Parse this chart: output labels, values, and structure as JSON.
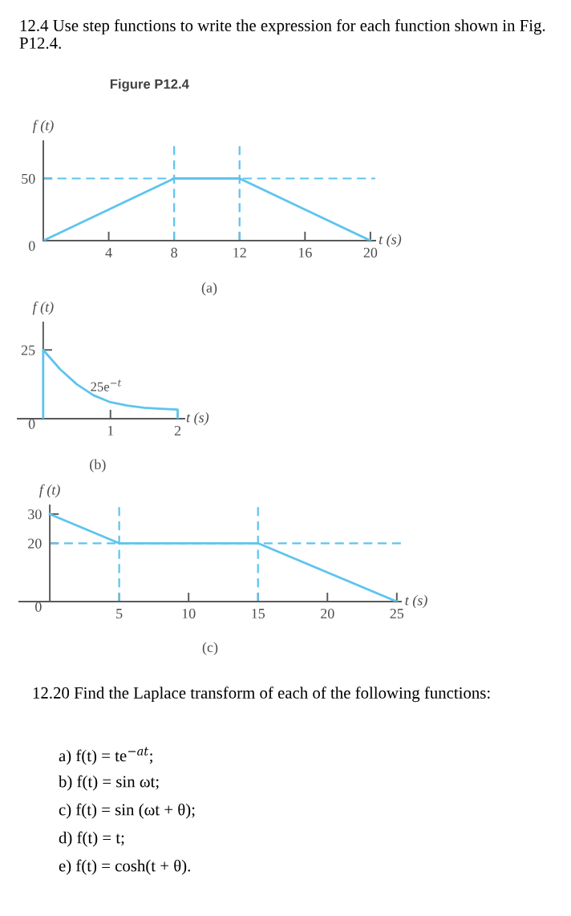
{
  "chart_data": [
    {
      "type": "line",
      "title": "12.4 Use step functions to write the expression for each function shown in Fig. P12.4.",
      "subtitle": "Figure P12.4",
      "xlabel": "t (s)",
      "ylabel": "f (t)",
      "x": [
        0,
        8,
        12,
        20
      ],
      "series": [
        {
          "color": "#5ec4ee",
          "values": [
            0,
            50,
            50,
            0
          ]
        }
      ],
      "xlim": [
        0,
        20.3
      ],
      "ylim": [
        0,
        80
      ],
      "xticks": [
        4,
        8,
        12,
        16,
        20
      ],
      "yticks": [
        0,
        50
      ],
      "ref_lines": [
        {
          "axis": "y",
          "value": 50,
          "color": "#5ec4ee",
          "line_style": "dashed"
        },
        {
          "axis": "x",
          "value": 8,
          "color": "#5ec4ee",
          "line_style": "dashed"
        },
        {
          "axis": "x",
          "value": 12,
          "color": "#5ec4ee",
          "line_style": "dashed"
        }
      ],
      "annotations": [
        "(a)"
      ],
      "grid": false,
      "marker": "none",
      "line_style": "solid"
    },
    {
      "type": "line",
      "xlabel": "t (s)",
      "ylabel": "f (t)",
      "x": [
        0,
        0,
        0.25,
        0.5,
        0.75,
        1,
        1.25,
        1.5,
        1.75,
        2,
        2
      ],
      "series": [
        {
          "color": "#5ec4ee",
          "values": [
            0,
            25,
            18,
            12.5,
            8.5,
            6,
            4.8,
            4,
            3.6,
            3.3,
            0
          ]
        }
      ],
      "xlim": [
        -0.38,
        2.1
      ],
      "ylim": [
        0,
        35
      ],
      "xticks": [
        1,
        2
      ],
      "yticks": [
        0,
        25
      ],
      "annotations": [
        {
          "text": "25e$^{−t}$",
          "x": 0.7,
          "y": 9
        },
        "(b)"
      ],
      "grid": false,
      "marker": "none",
      "line_style": "solid"
    },
    {
      "type": "line",
      "xlabel": "t (s)",
      "ylabel": "f (t)",
      "x": [
        0,
        5,
        15,
        25
      ],
      "series": [
        {
          "color": "#5ec4ee",
          "values": [
            30,
            20,
            20,
            0
          ]
        }
      ],
      "xlim": [
        -2.2,
        25.3
      ],
      "ylim": [
        0,
        33
      ],
      "xticks": [
        5,
        10,
        15,
        20,
        25
      ],
      "yticks": [
        0,
        20,
        30
      ],
      "ref_lines": [
        {
          "axis": "y",
          "value": 20,
          "color": "#5ec4ee",
          "line_style": "dashed"
        },
        {
          "axis": "x",
          "value": 5,
          "color": "#5ec4ee",
          "line_style": "dashed"
        },
        {
          "axis": "x",
          "value": 15,
          "color": "#5ec4ee",
          "line_style": "dashed"
        }
      ],
      "annotations": [
        "(c)"
      ],
      "grid": false,
      "marker": "none",
      "line_style": "solid"
    },
    {
      "type": "other",
      "title": "12.20 Find the Laplace transform of each of the following functions:",
      "annotations": [
        "a) f(t) = te$^{−at}$;",
        "b) f(t) = sin ωt;",
        "c) f(t) = sin (ωt + θ);",
        "d) f(t) = t;",
        "e) f(t) = cosh(t + θ)."
      ]
    }
  ]
}
